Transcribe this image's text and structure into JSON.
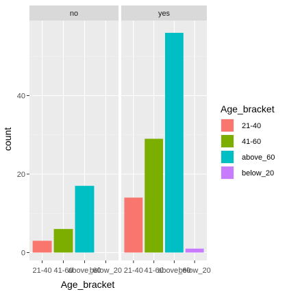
{
  "chart_data": {
    "type": "bar",
    "xlabel": "Age_bracket",
    "ylabel": "count",
    "ylim": [
      0,
      60
    ],
    "yticks": [
      0,
      20,
      40
    ],
    "categories": [
      "21-40",
      "41-60",
      "above_60",
      "below_20"
    ],
    "facets": [
      {
        "name": "no",
        "values": [
          3,
          6,
          17,
          0
        ]
      },
      {
        "name": "yes",
        "values": [
          14,
          29,
          56,
          1
        ]
      }
    ],
    "legend": {
      "title": "Age_bracket",
      "entries": [
        "21-40",
        "41-60",
        "above_60",
        "below_20"
      ],
      "placement": "right"
    },
    "colors": {
      "21-40": "#F8766D",
      "41-60": "#7CAE00",
      "above_60": "#00BFC4",
      "below_20": "#C77CFF"
    },
    "grid": true
  }
}
